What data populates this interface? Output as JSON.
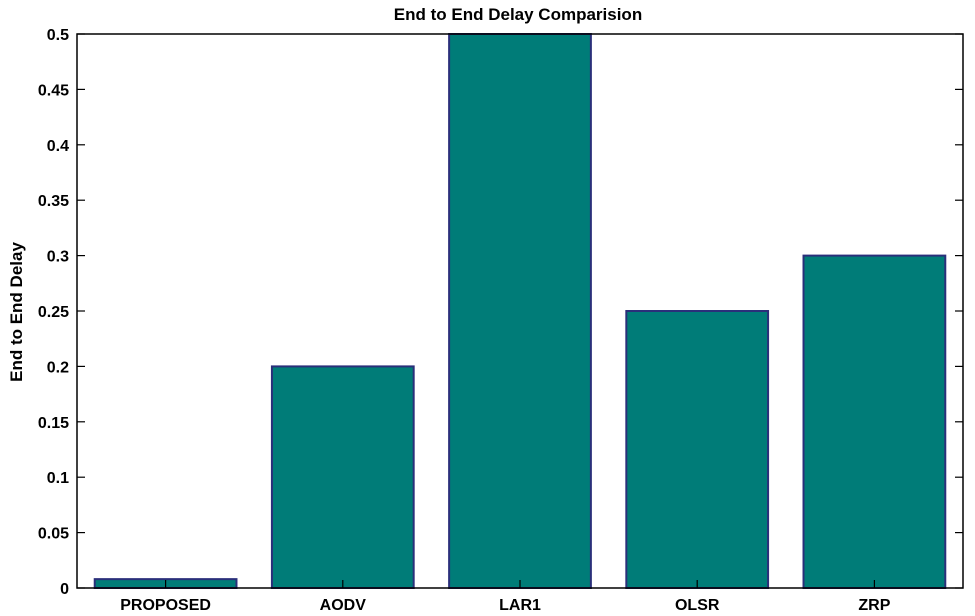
{
  "chart_data": {
    "type": "bar",
    "title": "End to End Delay Comparision",
    "xlabel": "",
    "ylabel": "End to End Delay",
    "categories": [
      "PROPOSED",
      "AODV",
      "LAR1",
      "OLSR",
      "ZRP"
    ],
    "values": [
      0.008,
      0.2,
      0.5,
      0.25,
      0.3
    ],
    "ylim": [
      0,
      0.5
    ],
    "yticks": [
      "0",
      "0.05",
      "0.1",
      "0.15",
      "0.2",
      "0.25",
      "0.3",
      "0.35",
      "0.4",
      "0.45",
      "0.5"
    ],
    "grid": false,
    "legend": "none",
    "colors": {
      "bar_fill": "#007c78",
      "bar_edge": "#2a2f7a",
      "axis": "#000000"
    }
  }
}
